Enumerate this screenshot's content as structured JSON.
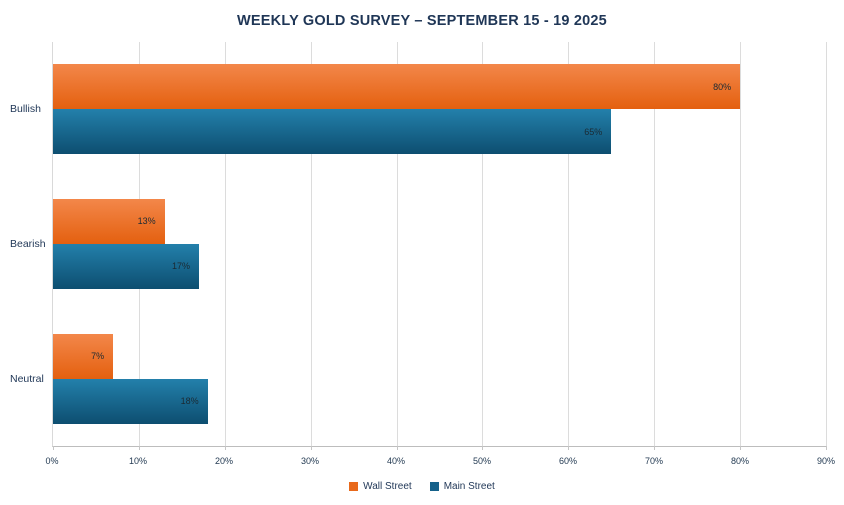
{
  "chart_data": {
    "type": "bar",
    "orientation": "horizontal",
    "title": "WEEKLY GOLD SURVEY – SEPTEMBER 15 - 19 2025",
    "categories": [
      "Bullish",
      "Bearish",
      "Neutral"
    ],
    "series": [
      {
        "name": "Wall Street",
        "values": [
          80,
          13,
          7
        ],
        "color_top": "#F3874A",
        "color_bottom": "#E4600F",
        "legend_color": "#E8691C"
      },
      {
        "name": "Main Street",
        "values": [
          65,
          17,
          18
        ],
        "color_top": "#2380AB",
        "color_bottom": "#0D4E70",
        "legend_color": "#15618A"
      }
    ],
    "xlim": [
      0,
      90
    ],
    "tick_step": 10,
    "x_ticks": [
      "0%",
      "10%",
      "20%",
      "30%",
      "40%",
      "50%",
      "60%",
      "70%",
      "80%",
      "90%"
    ],
    "data_label_suffix": "%",
    "grid": true,
    "legend_position": "bottom",
    "title_color": "#1F3656",
    "grid_color": "#DCDCDC",
    "axis_color": "#BDBDBD"
  }
}
